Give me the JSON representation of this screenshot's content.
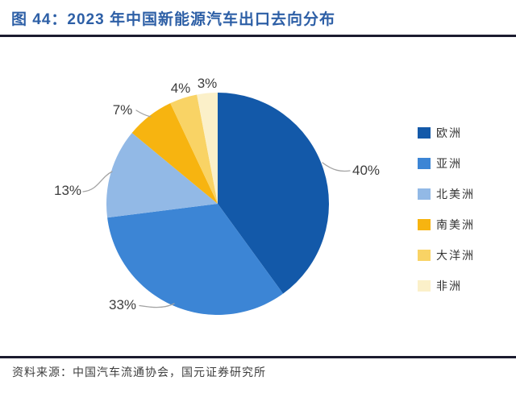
{
  "header": {
    "title": "图 44：2023 年中国新能源汽车出口去向分布"
  },
  "footer": {
    "source": "资料来源：中国汽车流通协会，国元证券研究所"
  },
  "chart_data": {
    "type": "pie",
    "title": "2023 年中国新能源汽车出口去向分布",
    "unit": "%",
    "start_angle_deg": 0,
    "direction": "clockwise",
    "legend_position": "right",
    "slices": [
      {
        "label": "欧洲",
        "value": 40,
        "display": "40%",
        "color": "#1359a9"
      },
      {
        "label": "亚洲",
        "value": 33,
        "display": "33%",
        "color": "#3c85d5"
      },
      {
        "label": "北美洲",
        "value": 13,
        "display": "13%",
        "color": "#92b9e6"
      },
      {
        "label": "南美洲",
        "value": 7,
        "display": "7%",
        "color": "#f7b410"
      },
      {
        "label": "大洋洲",
        "value": 4,
        "display": "4%",
        "color": "#f9d365"
      },
      {
        "label": "非洲",
        "value": 3,
        "display": "3%",
        "color": "#fbf0c9"
      }
    ]
  },
  "colors": {
    "title_blue": "#2d5fa6",
    "rule_dark": "#1b1b2f",
    "label_gray": "#3d3d3d",
    "leader_gray": "#a3a3a3"
  }
}
